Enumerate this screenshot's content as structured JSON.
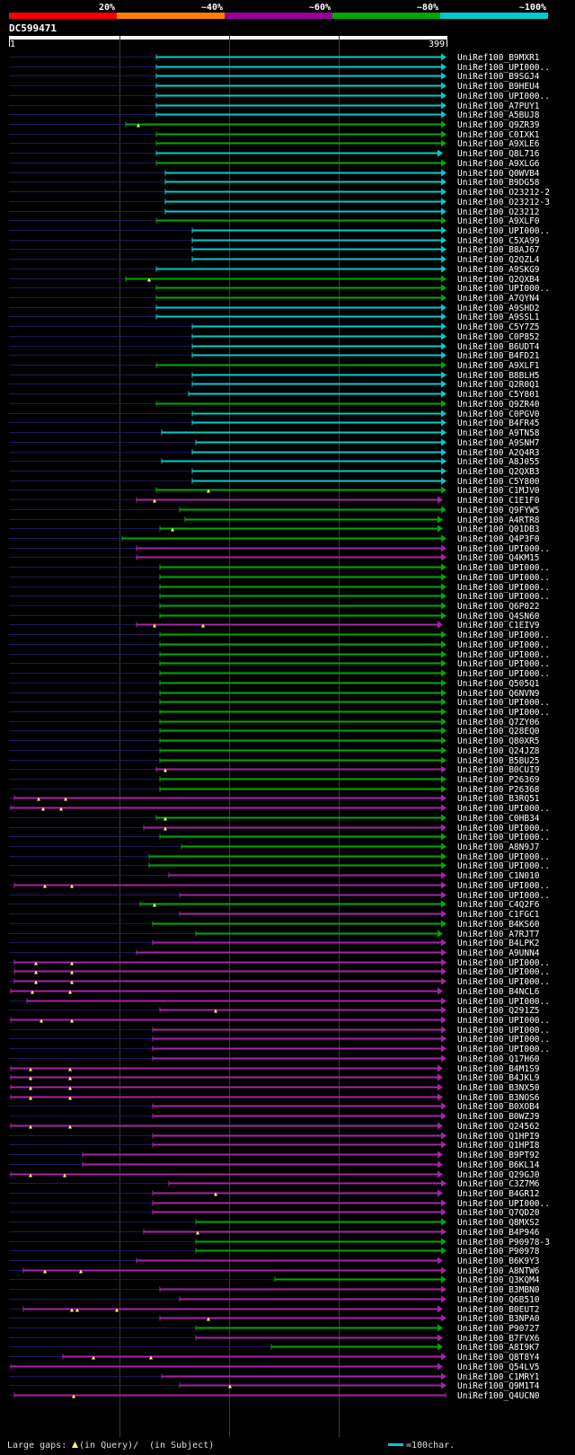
{
  "chart_data": {
    "type": "alignment-overview",
    "query_id": "DC599471",
    "query_start": "1",
    "query_end": "399",
    "identity_scale": {
      "labels": [
        "20%",
        "~40%",
        "~60%",
        "~80%",
        "~100%"
      ],
      "colors": [
        "#ff0000",
        "#ff7f00",
        "#990099",
        "#00aa00",
        "#00cccc"
      ]
    },
    "legend": {
      "gaps_label": "Large gaps:",
      "query_gap_text": "(in Query)/",
      "subject_gap_text": "(in Subject)",
      "scale_text": "=100char."
    },
    "hits": [
      [
        "UniRef100_B9MXR1",
        "c",
        174,
        496,
        [],
        1
      ],
      [
        "UniRef100_UPI000..",
        "c",
        174,
        496,
        [],
        1
      ],
      [
        "UniRef100_B9SGJ4",
        "c",
        174,
        496,
        [],
        1
      ],
      [
        "UniRef100_B9HEU4",
        "c",
        174,
        496,
        [],
        1
      ],
      [
        "UniRef100_UPI000..",
        "c",
        174,
        496,
        [],
        1
      ],
      [
        "UniRef100_A7PUY1",
        "c",
        174,
        496,
        [],
        1
      ],
      [
        "UniRef100_A5BUJ8",
        "c",
        174,
        496,
        [],
        1
      ],
      [
        "UniRef100_Q9ZR39",
        "g",
        140,
        496,
        [
          154
        ],
        1
      ],
      [
        "UniRef100_C0IXK1",
        "g",
        174,
        496,
        [],
        1
      ],
      [
        "UniRef100_A9XLE6",
        "g",
        174,
        496,
        [],
        1
      ],
      [
        "UniRef100_Q8L716",
        "c",
        174,
        492,
        [],
        1
      ],
      [
        "UniRef100_A9XLG6",
        "g",
        174,
        496,
        [],
        1
      ],
      [
        "UniRef100_Q0WVB4",
        "c",
        184,
        496,
        [],
        1
      ],
      [
        "UniRef100_B9DG58",
        "c",
        184,
        496,
        [],
        1
      ],
      [
        "UniRef100_O23212-2",
        "c",
        184,
        496,
        [],
        1
      ],
      [
        "UniRef100_O23212-3",
        "c",
        184,
        496,
        [],
        1
      ],
      [
        "UniRef100_O23212",
        "c",
        184,
        496,
        [],
        1
      ],
      [
        "UniRef100_A9XLF0",
        "g",
        174,
        496,
        [],
        1
      ],
      [
        "UniRef100_UPI000..",
        "c",
        214,
        496,
        [],
        1
      ],
      [
        "UniRef100_C5XA99",
        "c",
        214,
        496,
        [],
        1
      ],
      [
        "UniRef100_B8AJ67",
        "c",
        214,
        496,
        [],
        1
      ],
      [
        "UniRef100_Q2QZL4",
        "c",
        214,
        496,
        [],
        1
      ],
      [
        "UniRef100_A9SKG9",
        "c",
        174,
        496,
        [],
        1
      ],
      [
        "UniRef100_Q2QXB4",
        "g",
        140,
        496,
        [
          166
        ],
        1
      ],
      [
        "UniRef100_UPI000..",
        "g",
        174,
        496,
        [],
        1
      ],
      [
        "UniRef100_A7QYN4",
        "g",
        174,
        496,
        [],
        1
      ],
      [
        "UniRef100_A9SHD2",
        "c",
        174,
        496,
        [],
        1
      ],
      [
        "UniRef100_A9SSL1",
        "c",
        174,
        496,
        [],
        1
      ],
      [
        "UniRef100_C5Y7Z5",
        "c",
        214,
        496,
        [],
        1
      ],
      [
        "UniRef100_C0P852",
        "c",
        214,
        496,
        [],
        1
      ],
      [
        "UniRef100_B6UDT4",
        "c",
        214,
        496,
        [],
        1
      ],
      [
        "UniRef100_B4FD21",
        "c",
        214,
        496,
        [],
        1
      ],
      [
        "UniRef100_A9XLF1",
        "g",
        174,
        496,
        [],
        1
      ],
      [
        "UniRef100_B8BLH5",
        "c",
        214,
        496,
        [],
        1
      ],
      [
        "UniRef100_Q2R0Q1",
        "c",
        214,
        496,
        [],
        1
      ],
      [
        "UniRef100_C5Y801",
        "c",
        210,
        496,
        [],
        1
      ],
      [
        "UniRef100_Q9ZR40",
        "g",
        174,
        496,
        [],
        1
      ],
      [
        "UniRef100_C0PGV0",
        "c",
        214,
        496,
        [],
        1
      ],
      [
        "UniRef100_B4FR45",
        "c",
        214,
        496,
        [],
        1
      ],
      [
        "UniRef100_A9TN58",
        "c",
        180,
        496,
        [],
        1
      ],
      [
        "UniRef100_A9SNH7",
        "c",
        218,
        496,
        [],
        1
      ],
      [
        "UniRef100_A2Q4R3",
        "c",
        214,
        496,
        [],
        1
      ],
      [
        "UniRef100_A8J055",
        "c",
        180,
        496,
        [],
        1
      ],
      [
        "UniRef100_Q2QXB3",
        "c",
        214,
        496,
        [],
        1
      ],
      [
        "UniRef100_C5Y800",
        "c",
        214,
        496,
        [],
        1
      ],
      [
        "UniRef100_C1MJV0",
        "g",
        174,
        496,
        [
          232
        ],
        1
      ],
      [
        "UniRef100_C1E1F0",
        "m",
        152,
        492,
        [
          172
        ],
        1
      ],
      [
        "UniRef100_Q9FYW5",
        "g",
        200,
        496,
        [],
        1
      ],
      [
        "UniRef100_A4RTR8",
        "g",
        206,
        492,
        [],
        1
      ],
      [
        "UniRef100_Q01DB3",
        "g",
        178,
        492,
        [
          192
        ],
        1
      ],
      [
        "UniRef100_Q4P3F0",
        "g",
        136,
        496,
        [],
        1
      ],
      [
        "UniRef100_UPI000..",
        "m",
        152,
        496,
        [],
        1
      ],
      [
        "UniRef100_Q4KM15",
        "m",
        152,
        496,
        [],
        1
      ],
      [
        "UniRef100_UPI000..",
        "g",
        178,
        496,
        [],
        1
      ],
      [
        "UniRef100_UPI000..",
        "g",
        178,
        496,
        [],
        1
      ],
      [
        "UniRef100_UPI000..",
        "g",
        178,
        496,
        [],
        1
      ],
      [
        "UniRef100_UPI000..",
        "g",
        178,
        496,
        [],
        1
      ],
      [
        "UniRef100_Q6P022",
        "g",
        178,
        496,
        [],
        1
      ],
      [
        "UniRef100_Q4SN60",
        "g",
        178,
        496,
        [],
        1
      ],
      [
        "UniRef100_C1EIV9",
        "m",
        152,
        492,
        [
          172,
          226
        ],
        1
      ],
      [
        "UniRef100_UPI000..",
        "g",
        178,
        496,
        [],
        1
      ],
      [
        "UniRef100_UPI000..",
        "g",
        178,
        496,
        [],
        1
      ],
      [
        "UniRef100_UPI000..",
        "g",
        178,
        496,
        [],
        1
      ],
      [
        "UniRef100_UPI000..",
        "g",
        178,
        496,
        [],
        1
      ],
      [
        "UniRef100_UPI000..",
        "g",
        178,
        496,
        [],
        1
      ],
      [
        "UniRef100_Q505Q1",
        "g",
        178,
        496,
        [],
        1
      ],
      [
        "UniRef100_Q6NVN9",
        "g",
        178,
        496,
        [],
        1
      ],
      [
        "UniRef100_UPI000..",
        "g",
        178,
        496,
        [],
        1
      ],
      [
        "UniRef100_UPI000..",
        "g",
        178,
        496,
        [],
        1
      ],
      [
        "UniRef100_Q7ZY06",
        "g",
        178,
        496,
        [],
        1
      ],
      [
        "UniRef100_Q28EQ0",
        "g",
        178,
        496,
        [],
        1
      ],
      [
        "UniRef100_Q80XR5",
        "g",
        178,
        496,
        [],
        1
      ],
      [
        "UniRef100_Q24JZ8",
        "g",
        178,
        496,
        [],
        1
      ],
      [
        "UniRef100_B5BU25",
        "g",
        178,
        496,
        [],
        1
      ],
      [
        "UniRef100_B0CUI9",
        "m",
        174,
        496,
        [
          184
        ],
        1
      ],
      [
        "UniRef100_P26369",
        "g",
        178,
        496,
        [],
        1
      ],
      [
        "UniRef100_P26368",
        "g",
        178,
        496,
        [],
        1
      ],
      [
        "UniRef100_B3RQ51",
        "m",
        16,
        496,
        [
          43,
          73
        ],
        1
      ],
      [
        "UniRef100_UPI000..",
        "m",
        12,
        496,
        [
          48,
          68
        ],
        1
      ],
      [
        "UniRef100_C0HB34",
        "g",
        174,
        496,
        [
          184
        ],
        1
      ],
      [
        "UniRef100_UPI000..",
        "m",
        160,
        496,
        [
          184
        ],
        1
      ],
      [
        "UniRef100_UPI000..",
        "g",
        178,
        496,
        [],
        1
      ],
      [
        "UniRef100_A8N9J7",
        "g",
        202,
        496,
        [],
        1
      ],
      [
        "UniRef100_UPI000..",
        "g",
        166,
        496,
        [],
        1
      ],
      [
        "UniRef100_UPI000..",
        "g",
        166,
        496,
        [],
        1
      ],
      [
        "UniRef100_C1N010",
        "m",
        188,
        496,
        [],
        1
      ],
      [
        "UniRef100_UPI000..",
        "m",
        16,
        496,
        [
          50,
          80
        ],
        1
      ],
      [
        "UniRef100_UPI000..",
        "m",
        200,
        496,
        [],
        1
      ],
      [
        "UniRef100_C4Q2F6",
        "g",
        156,
        496,
        [
          172
        ],
        1
      ],
      [
        "UniRef100_C1FGC1",
        "m",
        200,
        496,
        [],
        1
      ],
      [
        "UniRef100_B4KS60",
        "g",
        170,
        496,
        [],
        1
      ],
      [
        "UniRef100_A7RJT7",
        "g",
        218,
        492,
        [],
        1
      ],
      [
        "UniRef100_B4LPK2",
        "m",
        170,
        496,
        [],
        1
      ],
      [
        "UniRef100_A9UNN4",
        "m",
        152,
        496,
        [],
        1
      ],
      [
        "UniRef100_UPI000..",
        "m",
        16,
        496,
        [
          40,
          80
        ],
        1
      ],
      [
        "UniRef100_UPI000..",
        "m",
        16,
        496,
        [
          40,
          80
        ],
        1
      ],
      [
        "UniRef100_UPI000..",
        "m",
        16,
        496,
        [
          40,
          80
        ],
        1
      ],
      [
        "UniRef100_B4NCL6",
        "m",
        12,
        492,
        [
          36,
          78
        ],
        1
      ],
      [
        "UniRef100_UPI000..",
        "m",
        30,
        496,
        [],
        1
      ],
      [
        "UniRef100_Q291Z5",
        "m",
        178,
        496,
        [
          240
        ],
        1
      ],
      [
        "UniRef100_UPI000..",
        "m",
        12,
        496,
        [
          46,
          80
        ],
        1
      ],
      [
        "UniRef100_UPI000..",
        "m",
        170,
        496,
        [],
        1
      ],
      [
        "UniRef100_UPI000..",
        "m",
        170,
        496,
        [],
        1
      ],
      [
        "UniRef100_UPI000..",
        "m",
        170,
        496,
        [],
        1
      ],
      [
        "UniRef100_Q17H60",
        "m",
        170,
        496,
        [],
        1
      ],
      [
        "UniRef100_B4M1S9",
        "m",
        12,
        492,
        [
          34,
          78
        ],
        1
      ],
      [
        "UniRef100_B4JKL9",
        "m",
        12,
        492,
        [
          34,
          78
        ],
        1
      ],
      [
        "UniRef100_B3NX50",
        "m",
        12,
        492,
        [
          34,
          78
        ],
        1
      ],
      [
        "UniRef100_B3NOS6",
        "m",
        12,
        492,
        [
          34,
          78
        ],
        1
      ],
      [
        "UniRef100_B0XOB4",
        "m",
        170,
        496,
        [],
        1
      ],
      [
        "UniRef100_B0WZJ9",
        "m",
        170,
        496,
        [],
        1
      ],
      [
        "UniRef100_Q24562",
        "m",
        12,
        492,
        [
          34,
          78
        ],
        1
      ],
      [
        "UniRef100_Q1HPI9",
        "m",
        170,
        496,
        [],
        1
      ],
      [
        "UniRef100_Q1HPI8",
        "m",
        170,
        496,
        [],
        1
      ],
      [
        "UniRef100_B9PT92",
        "m",
        92,
        492,
        [],
        1
      ],
      [
        "UniRef100_B6KL14",
        "m",
        92,
        492,
        [],
        1
      ],
      [
        "UniRef100_Q29GJ0",
        "m",
        12,
        492,
        [
          34,
          72
        ],
        1
      ],
      [
        "UniRef100_C3Z7M6",
        "m",
        188,
        496,
        [],
        1
      ],
      [
        "UniRef100_B4GR12",
        "m",
        170,
        492,
        [
          240
        ],
        1
      ],
      [
        "UniRef100_UPI000..",
        "m",
        170,
        496,
        [],
        1
      ],
      [
        "UniRef100_Q7QD20",
        "m",
        170,
        496,
        [],
        1
      ],
      [
        "UniRef100_Q8MXS2",
        "g",
        218,
        496,
        [],
        1
      ],
      [
        "UniRef100_B4P946",
        "m",
        160,
        496,
        [
          220
        ],
        1
      ],
      [
        "UniRef100_P90978-3",
        "g",
        218,
        496,
        [],
        1
      ],
      [
        "UniRef100_P90978",
        "g",
        218,
        496,
        [],
        1
      ],
      [
        "UniRef100_B6K9Y3",
        "m",
        152,
        492,
        [],
        1
      ],
      [
        "UniRef100_A8NTW6",
        "m",
        26,
        496,
        [
          50,
          90
        ],
        1
      ],
      [
        "UniRef100_Q3KQM4",
        "g",
        306,
        496,
        [],
        1
      ],
      [
        "UniRef100_B3MBN0",
        "m",
        178,
        496,
        [],
        1
      ],
      [
        "UniRef100_Q6B510",
        "m",
        200,
        496,
        [],
        1
      ],
      [
        "UniRef100_B0EUT2",
        "m",
        26,
        492,
        [
          80,
          86,
          130
        ],
        1
      ],
      [
        "UniRef100_B3NPA0",
        "m",
        178,
        496,
        [
          232
        ],
        1
      ],
      [
        "UniRef100_P90727",
        "g",
        218,
        492,
        [],
        1
      ],
      [
        "UniRef100_B7FVX6",
        "m",
        218,
        492,
        [],
        1
      ],
      [
        "UniRef100_A8I9K7",
        "g",
        302,
        492,
        [],
        1
      ],
      [
        "UniRef100_Q8T8Y4",
        "m",
        70,
        496,
        [
          104,
          168
        ],
        1
      ],
      [
        "UniRef100_Q54LV5",
        "m",
        12,
        492,
        [],
        1
      ],
      [
        "UniRef100_C1MRY1",
        "m",
        180,
        496,
        [],
        1
      ],
      [
        "UniRef100_Q9M1T4",
        "m",
        200,
        496,
        [
          256
        ],
        1
      ],
      [
        "UniRef100_Q4UCN0",
        "m",
        16,
        496,
        [
          82
        ],
        0
      ]
    ]
  }
}
